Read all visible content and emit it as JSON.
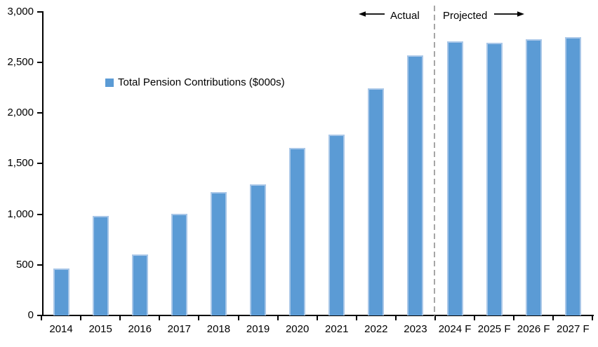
{
  "chart_data": {
    "type": "bar",
    "title": "",
    "legend": "Total Pension Contributions ($000s)",
    "categories": [
      "2014",
      "2015",
      "2016",
      "2017",
      "2018",
      "2019",
      "2020",
      "2021",
      "2022",
      "2023",
      "2024 F",
      "2025 F",
      "2026 F",
      "2027 F"
    ],
    "values": [
      465,
      980,
      600,
      1005,
      1220,
      1295,
      1655,
      1785,
      2240,
      2565,
      2705,
      2690,
      2725,
      2745
    ],
    "ylim": [
      0,
      3000
    ],
    "ytick_step": 500,
    "ytick_labels": [
      "0",
      "500",
      "1,000",
      "1,500",
      "2,000",
      "2,500",
      "3,000"
    ],
    "grid": false,
    "legend_position": "upper-left-inside",
    "annotations": {
      "actual_label": "Actual",
      "projected_label": "Projected"
    },
    "divider_after_category": "2023",
    "divider_boundary_index": 10,
    "colors": {
      "bar_fill": "#5B9BD5",
      "bar_edge": "#A9C7E8",
      "divider": "#A6A6A6",
      "axis": "#000000",
      "text": "#000000",
      "background": "#FFFFFF"
    }
  }
}
